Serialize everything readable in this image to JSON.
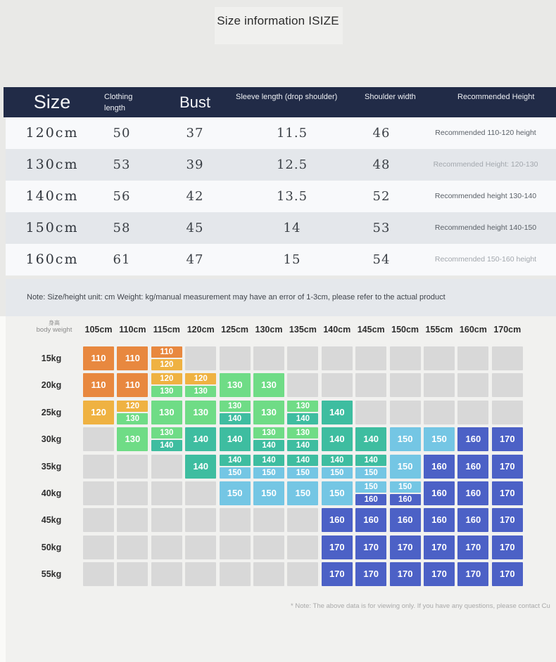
{
  "page": {
    "title": "Size information ISIZE",
    "footer_note": "* Note: The above data is for viewing only. If you have any questions, please contact Cu",
    "unit_note": "Note: Size/height unit: cm Weight: kg/manual measurement may have an error of 1-3cm, please refer to the actual product"
  },
  "size_table": {
    "muted_recommend_rows": [
      1,
      4
    ]
  },
  "fit_matrix": {
    "corner_label_cn": "身高",
    "corner_label_en": "body weight",
    "size_colors": {
      "110": "#E8883F",
      "120": "#EFB242",
      "130": "#6FDC86",
      "140": "#3EBDA0",
      "150": "#74C6E4",
      "160": "#4C61C6",
      "170": "#4C61C6",
      "empty": "#D8D8D8"
    }
  },
  "chart_data": [
    {
      "type": "table",
      "title": "Size information ISIZE",
      "columns": [
        "Size",
        "Clothing length",
        "Bust",
        "Sleeve length (drop shoulder)",
        "Shoulder width",
        "Recommended Height"
      ],
      "rows": [
        [
          "120cm",
          "50",
          "37",
          "11.5",
          "46",
          "Recommended 110-120 height"
        ],
        [
          "130cm",
          "53",
          "39",
          "12.5",
          "48",
          "Recommended Height: 120-130"
        ],
        [
          "140cm",
          "56",
          "42",
          "13.5",
          "52",
          "Recommended height 130-140"
        ],
        [
          "150cm",
          "58",
          "45",
          "14",
          "53",
          "Recommended height 140-150"
        ],
        [
          "160cm",
          "61",
          "47",
          "15",
          "54",
          "Recommended 150-160 height"
        ]
      ],
      "note": "Note: Size/height unit: cm Weight: kg/manual measurement may have an error of 1-3cm, please refer to the actual product"
    },
    {
      "type": "heatmap",
      "title": "Recommended size by height and body weight",
      "xlabel": "height (身高)",
      "ylabel": "body weight",
      "x": [
        "105cm",
        "110cm",
        "115cm",
        "120cm",
        "125cm",
        "130cm",
        "135cm",
        "140cm",
        "145cm",
        "150cm",
        "155cm",
        "160cm",
        "170cm"
      ],
      "y": [
        "15kg",
        "20kg",
        "25kg",
        "30kg",
        "35kg",
        "40kg",
        "45kg",
        "50kg",
        "55kg"
      ],
      "values": [
        [
          "110",
          "110",
          "110/120",
          "",
          "",
          "",
          "",
          "",
          "",
          "",
          "",
          "",
          ""
        ],
        [
          "110",
          "110",
          "120/130",
          "120/130",
          "130",
          "130",
          "",
          "",
          "",
          "",
          "",
          "",
          ""
        ],
        [
          "120",
          "120/130",
          "130",
          "130",
          "130/140",
          "130",
          "130/140",
          "140",
          "",
          "",
          "",
          "",
          ""
        ],
        [
          "",
          "130",
          "130/140",
          "140",
          "140",
          "130/140",
          "130/140",
          "140",
          "140",
          "150",
          "150",
          "160",
          "170"
        ],
        [
          "",
          "",
          "",
          "140",
          "140/150",
          "140/150",
          "140/150",
          "140/150",
          "140/150",
          "150",
          "160",
          "160",
          "170"
        ],
        [
          "",
          "",
          "",
          "",
          "150",
          "150",
          "150",
          "150",
          "150/160",
          "150/160",
          "160",
          "160",
          "170"
        ],
        [
          "",
          "",
          "",
          "",
          "",
          "",
          "",
          "160",
          "160",
          "160",
          "160",
          "160",
          "170"
        ],
        [
          "",
          "",
          "",
          "",
          "",
          "",
          "",
          "170",
          "170",
          "170",
          "170",
          "170",
          "170"
        ],
        [
          "",
          "",
          "",
          "",
          "",
          "",
          "",
          "170",
          "170",
          "170",
          "170",
          "170",
          "170"
        ]
      ],
      "legend_position": "none",
      "grid": false
    }
  ]
}
